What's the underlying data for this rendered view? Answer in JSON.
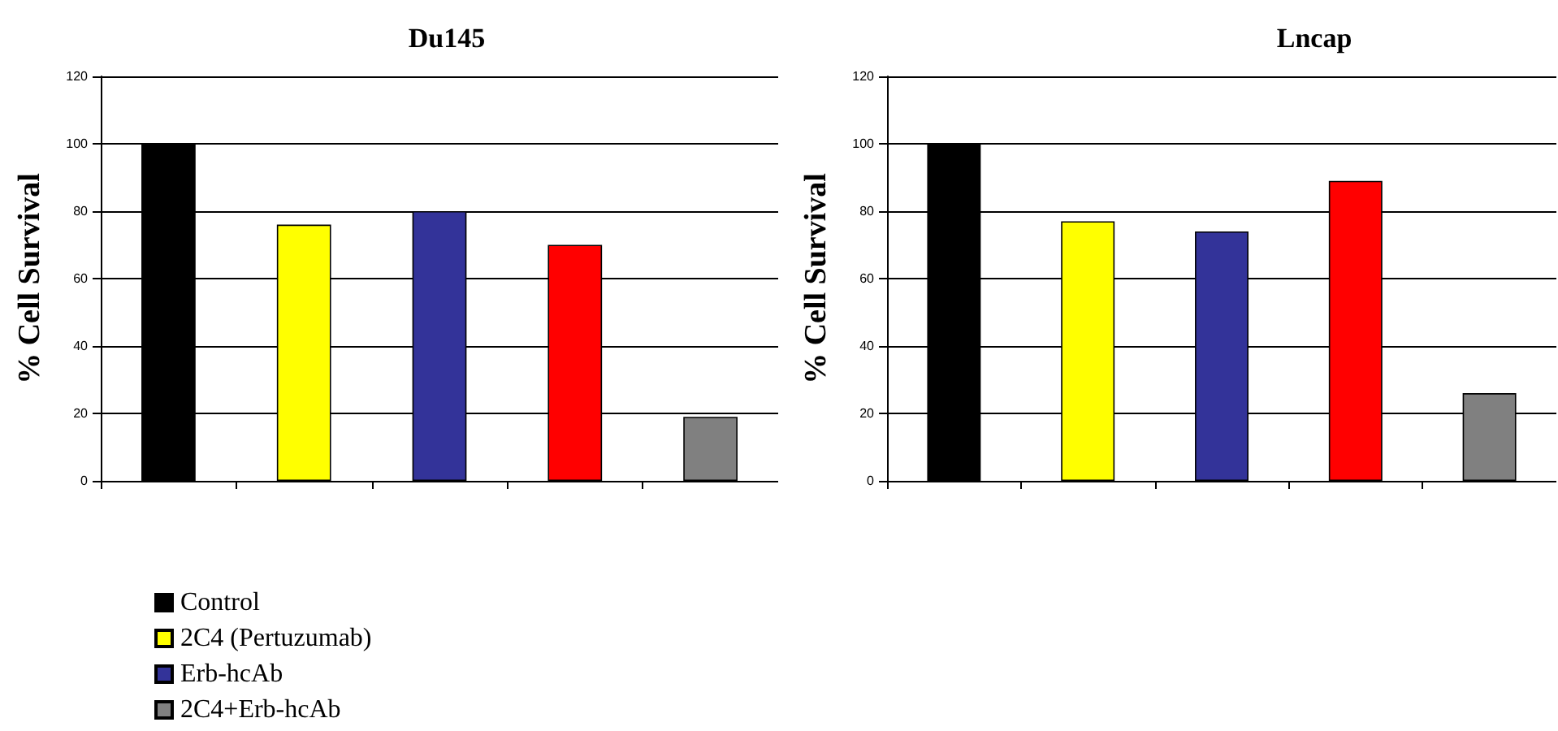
{
  "chart_data": [
    {
      "type": "bar",
      "title": "Du145",
      "ylabel": "% Cell Survival",
      "categories": [
        null,
        null,
        null,
        null,
        null
      ],
      "ylim": [
        0,
        120
      ],
      "yticks": [
        0,
        20,
        40,
        60,
        80,
        100,
        120
      ],
      "grid": "y",
      "legend": "bottom left",
      "series": [
        {
          "name": "Control",
          "color": "#000000",
          "values": [
            100,
            null,
            null,
            null,
            null
          ]
        },
        {
          "name": "2C4 (Pertuzumab)",
          "color": "#ffff00",
          "values": [
            null,
            76,
            null,
            null,
            null
          ]
        },
        {
          "name": "Erb-hcAb",
          "color": "#333399",
          "values": [
            null,
            null,
            80,
            null,
            null
          ]
        },
        {
          "color": "#ff0000",
          "values": [
            null,
            null,
            null,
            70,
            null
          ]
        },
        {
          "name": "2C4+Erb-hcAb",
          "color": "#808080",
          "values": [
            null,
            null,
            null,
            null,
            19
          ]
        }
      ]
    },
    {
      "type": "bar",
      "title": "Lncap",
      "ylabel": "% Cell Survival",
      "categories": [
        null,
        null,
        null,
        null,
        null
      ],
      "ylim": [
        0,
        120
      ],
      "yticks": [
        0,
        20,
        40,
        60,
        80,
        100,
        120
      ],
      "grid": "y",
      "series": [
        {
          "color": "#000000",
          "values": [
            100,
            null,
            null,
            null,
            null
          ]
        },
        {
          "color": "#ffff00",
          "values": [
            null,
            77,
            null,
            null,
            null
          ]
        },
        {
          "color": "#333399",
          "values": [
            null,
            null,
            74,
            null,
            null
          ]
        },
        {
          "color": "#ff0000",
          "values": [
            null,
            null,
            null,
            89,
            null
          ]
        },
        {
          "color": "#808080",
          "values": [
            null,
            null,
            null,
            null,
            26
          ]
        }
      ]
    }
  ]
}
